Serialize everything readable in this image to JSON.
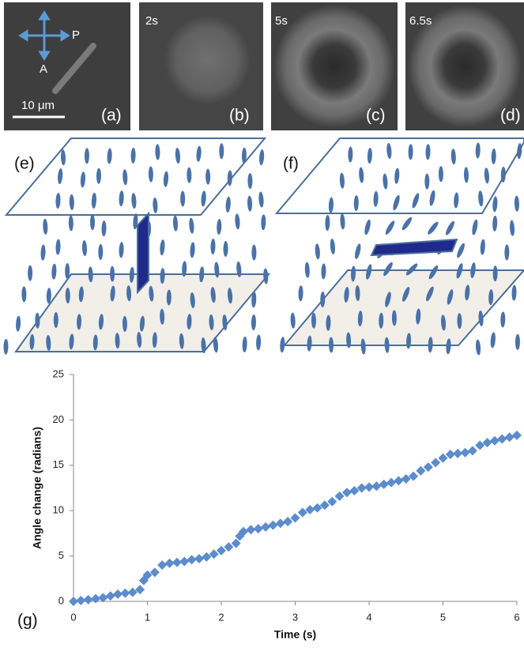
{
  "micrographs": [
    {
      "label": "(a)",
      "polarizer": "P",
      "analyzer": "A",
      "scale_bar": "10 μm"
    },
    {
      "label": "(b)",
      "time": "2s"
    },
    {
      "label": "(c)",
      "time": "5s"
    },
    {
      "label": "(d)",
      "time": "6.5s"
    }
  ],
  "diagrams": [
    {
      "label": "(e)"
    },
    {
      "label": "(f)"
    }
  ],
  "chart_data": {
    "type": "scatter",
    "panel_label": "(g)",
    "x_label": "Time (s)",
    "y_label": "Angle change (radians)",
    "x": [
      0,
      0.1,
      0.2,
      0.3,
      0.4,
      0.5,
      0.6,
      0.7,
      0.8,
      0.9,
      0.95,
      1.0,
      1.1,
      1.2,
      1.3,
      1.4,
      1.5,
      1.6,
      1.7,
      1.8,
      1.9,
      2.0,
      2.1,
      2.2,
      2.25,
      2.3,
      2.4,
      2.5,
      2.6,
      2.7,
      2.8,
      2.9,
      3.0,
      3.1,
      3.2,
      3.3,
      3.4,
      3.5,
      3.6,
      3.7,
      3.8,
      3.9,
      4.0,
      4.1,
      4.2,
      4.3,
      4.4,
      4.5,
      4.6,
      4.7,
      4.8,
      4.9,
      5.0,
      5.1,
      5.2,
      5.3,
      5.4,
      5.5,
      5.6,
      5.7,
      5.8,
      5.9,
      6.0
    ],
    "values": [
      0,
      0.1,
      0.2,
      0.3,
      0.4,
      0.6,
      0.8,
      0.9,
      1.0,
      1.3,
      2.3,
      2.9,
      3.2,
      4.0,
      4.2,
      4.3,
      4.4,
      4.6,
      4.7,
      4.9,
      5.2,
      5.6,
      6.0,
      6.4,
      7.2,
      7.7,
      7.9,
      8.0,
      8.2,
      8.4,
      8.6,
      8.8,
      9.2,
      9.8,
      10.1,
      10.3,
      10.6,
      11.0,
      11.6,
      12.0,
      12.2,
      12.5,
      12.6,
      12.7,
      12.9,
      13.1,
      13.3,
      13.5,
      13.8,
      14.4,
      14.8,
      15.3,
      15.8,
      16.2,
      16.3,
      16.4,
      16.6,
      17.2,
      17.5,
      17.7,
      17.9,
      18.1,
      18.3
    ],
    "color": "#5b8ccc",
    "xlim": [
      0,
      6
    ],
    "ylim": [
      0,
      25
    ],
    "xticks": [
      0,
      1,
      2,
      3,
      4,
      5,
      6
    ],
    "yticks": [
      0,
      5,
      10,
      15,
      20,
      25
    ]
  }
}
